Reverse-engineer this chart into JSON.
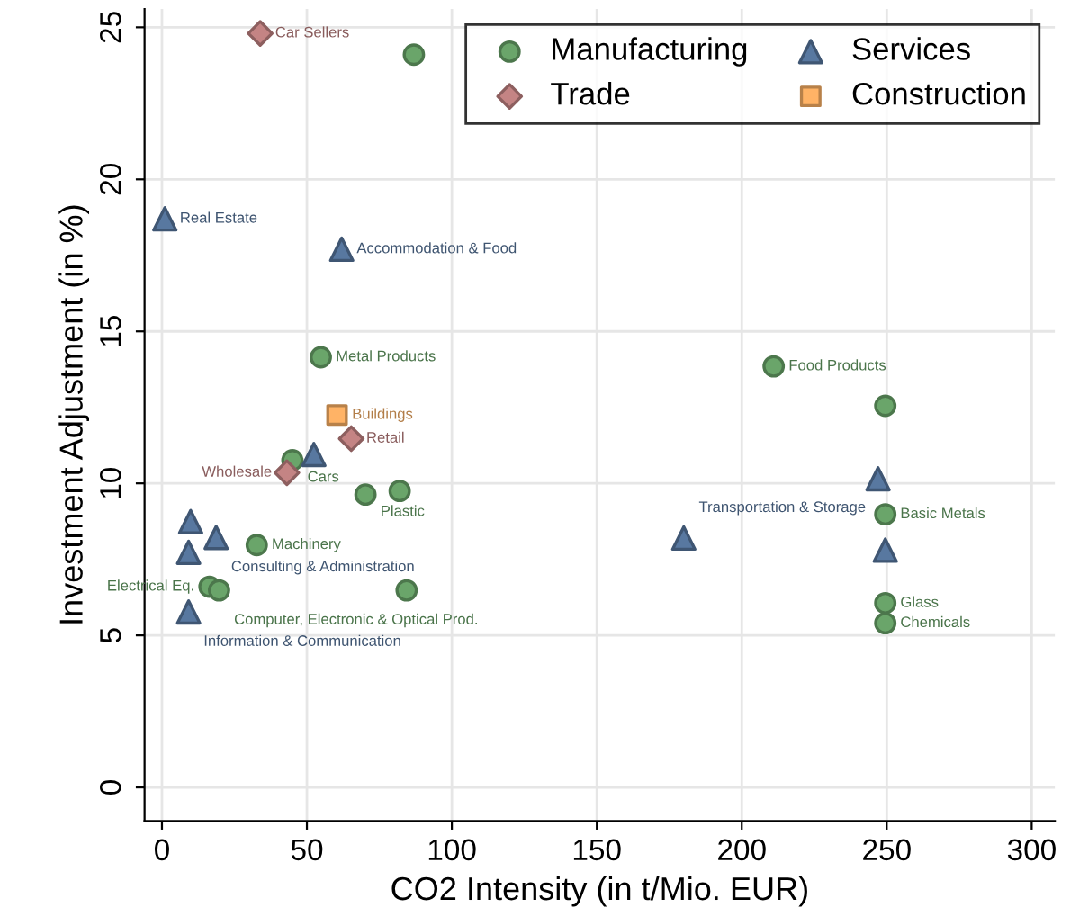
{
  "chart_data": {
    "type": "scatter",
    "xlabel": "CO2 Intensity (in t/Mio. EUR)",
    "ylabel": "Investment Adjustment (in %)",
    "xlim": [
      -6,
      308
    ],
    "ylim": [
      -1.1,
      25.6
    ],
    "xticks": [
      0,
      50,
      100,
      150,
      200,
      250,
      300
    ],
    "yticks": [
      0,
      5,
      10,
      15,
      20,
      25
    ],
    "grid": true,
    "legend": "top right",
    "series": [
      {
        "name": "Manufacturing",
        "color": "#6aa56a",
        "marker": "circle",
        "x": [
          86.9,
          54.8,
          211,
          249.5,
          45,
          70.2,
          82,
          249.5,
          32.7,
          16.4,
          19.7,
          84.4,
          249.5,
          249.5
        ],
        "values": [
          24.1,
          14.15,
          13.85,
          12.55,
          10.76,
          9.63,
          9.75,
          8.98,
          7.97,
          6.6,
          6.48,
          6.48,
          6.06,
          5.4
        ]
      },
      {
        "name": "Trade",
        "color": "#c48484",
        "marker": "diamond",
        "x": [
          33.9,
          65.3,
          43.1
        ],
        "values": [
          24.8,
          11.47,
          10.35
        ]
      },
      {
        "name": "Services",
        "color": "#5878a0",
        "marker": "triangle",
        "x": [
          1,
          62,
          52.4,
          247,
          180,
          249.5,
          9.9,
          18.7,
          9.2,
          9.2
        ],
        "values": [
          18.7,
          17.7,
          10.95,
          10.15,
          8.2,
          7.8,
          8.74,
          8.22,
          7.73,
          5.77
        ]
      },
      {
        "name": "Construction",
        "color": "#ffb366",
        "marker": "square",
        "x": [
          60.4
        ],
        "values": [
          12.25
        ]
      }
    ],
    "annotations": [
      {
        "text": "Car Sellers",
        "x": 33.9,
        "y": 24.8
      },
      {
        "text": "Real Estate",
        "x": 1,
        "y": 18.7
      },
      {
        "text": "Accommodation & Food",
        "x": 62,
        "y": 17.7
      },
      {
        "text": "Metal Products",
        "x": 54.8,
        "y": 14.15
      },
      {
        "text": "Food Products",
        "x": 211,
        "y": 13.85
      },
      {
        "text": "Buildings",
        "x": 60.4,
        "y": 12.25
      },
      {
        "text": "Retail",
        "x": 65.3,
        "y": 11.47
      },
      {
        "text": "Cars",
        "x": 45,
        "y": 10.76
      },
      {
        "text": "Wholesale",
        "x": 43.1,
        "y": 10.35
      },
      {
        "text": "Plastic",
        "x": 70.2,
        "y": 9.63
      },
      {
        "text": "Basic Metals",
        "x": 249.5,
        "y": 8.98
      },
      {
        "text": "Transportation & Storage",
        "x": 180,
        "y": 8.2
      },
      {
        "text": "Consulting & Administration",
        "x": 18.7,
        "y": 8.22
      },
      {
        "text": "Machinery",
        "x": 32.7,
        "y": 7.97
      },
      {
        "text": "Electrical Eq.",
        "x": 16.4,
        "y": 6.6
      },
      {
        "text": "Computer, Electronic & Optical Prod.",
        "x": 19.7,
        "y": 6.48
      },
      {
        "text": "Information & Communication",
        "x": 9.2,
        "y": 5.77
      },
      {
        "text": "Glass",
        "x": 249.5,
        "y": 6.06
      },
      {
        "text": "Chemicals",
        "x": 249.5,
        "y": 5.4
      }
    ]
  }
}
